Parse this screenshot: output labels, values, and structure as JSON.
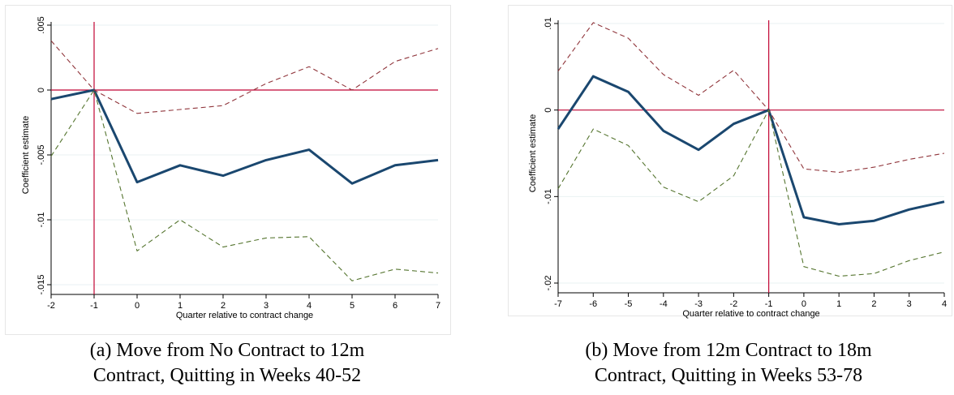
{
  "colors": {
    "estimate": "#1a476f",
    "upper_ci": "#90353b",
    "lower_ci": "#55752f",
    "reference": "#c10534",
    "grid": "#eaf2f3"
  },
  "captions": {
    "a_line1": "(a) Move from No Contract to 12m",
    "a_line2": "Contract, Quitting in Weeks 40-52",
    "b_line1": "(b) Move from 12m Contract to 18m",
    "b_line2": "Contract, Quitting in Weeks 53-78"
  },
  "chart_data": [
    {
      "type": "line",
      "xlabel": "Quarter relative to contract change",
      "ylabel": "Coefficient estimate",
      "x": [
        -2,
        -1,
        0,
        1,
        2,
        3,
        4,
        5,
        6,
        7
      ],
      "xlim": [
        -2,
        7
      ],
      "ylim": [
        -0.015,
        0.005
      ],
      "yticks": [
        0.005,
        0,
        -0.005,
        -0.01,
        -0.015
      ],
      "ytick_labels": [
        ".005",
        "0",
        "-.005",
        "-.01",
        "-.015"
      ],
      "xtick_labels": [
        "-2",
        "-1",
        "0",
        "1",
        "2",
        "3",
        "4",
        "5",
        "6",
        "7"
      ],
      "reference_lines": {
        "x": -1,
        "y": 0
      },
      "grid": true,
      "series": [
        {
          "role": "estimate",
          "style": "solid",
          "values": [
            -0.0007,
            0,
            -0.0071,
            -0.0058,
            -0.0066,
            -0.0054,
            -0.0046,
            -0.0072,
            -0.0058,
            -0.0054
          ]
        },
        {
          "role": "upper_ci",
          "style": "dashed",
          "values": [
            0.0038,
            0,
            -0.0018,
            -0.0015,
            -0.0012,
            0.0005,
            0.0018,
            0,
            0.0022,
            0.0032
          ]
        },
        {
          "role": "lower_ci",
          "style": "dashed",
          "values": [
            -0.0051,
            0,
            -0.0124,
            -0.01,
            -0.0121,
            -0.0114,
            -0.0113,
            -0.0147,
            -0.0138,
            -0.0141
          ]
        }
      ]
    },
    {
      "type": "line",
      "xlabel": "Quarter relative to contract change",
      "ylabel": "Coefficient estimate",
      "x": [
        -7,
        -6,
        -5,
        -4,
        -3,
        -2,
        -1,
        0,
        1,
        2,
        3,
        4
      ],
      "xlim": [
        -7,
        4
      ],
      "ylim": [
        -0.02,
        0.01
      ],
      "yticks": [
        0.01,
        0,
        -0.01,
        -0.02
      ],
      "ytick_labels": [
        ".01",
        "0",
        "-.01",
        "-.02"
      ],
      "xtick_labels": [
        "-7",
        "-6",
        "-5",
        "-4",
        "-3",
        "-2",
        "-1",
        "0",
        "1",
        "2",
        "3",
        "4"
      ],
      "reference_lines": {
        "x": -1,
        "y": 0
      },
      "grid": true,
      "series": [
        {
          "role": "estimate",
          "style": "solid",
          "values": [
            -0.0022,
            0.0039,
            0.0021,
            -0.0024,
            -0.0046,
            -0.0016,
            0,
            -0.0124,
            -0.0132,
            -0.0128,
            -0.0115,
            -0.0106
          ]
        },
        {
          "role": "upper_ci",
          "style": "dashed",
          "values": [
            0.0045,
            0.0101,
            0.0083,
            0.0041,
            0.0017,
            0.0046,
            0,
            -0.0068,
            -0.0072,
            -0.0066,
            -0.0057,
            -0.005
          ]
        },
        {
          "role": "lower_ci",
          "style": "dashed",
          "values": [
            -0.0091,
            -0.0022,
            -0.0041,
            -0.0089,
            -0.0106,
            -0.0076,
            0,
            -0.0181,
            -0.0192,
            -0.0189,
            -0.0174,
            -0.0164
          ]
        }
      ]
    }
  ]
}
